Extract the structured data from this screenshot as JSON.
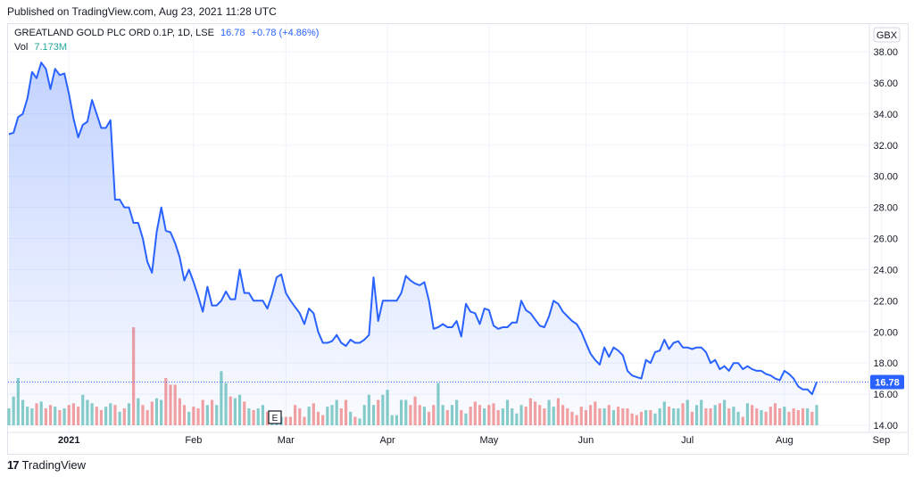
{
  "header": {
    "published": "Published on TradingView.com, Aug 23, 2021 11:28 UTC"
  },
  "legend": {
    "symbol": "GREATLAND GOLD PLC ORD 0.1P, 1D, LSE",
    "last": "16.78",
    "change": "+0.78 (+4.86%)",
    "vol_label": "Vol",
    "vol_value": "7.173M"
  },
  "currency": "GBX",
  "last_price_label": "16.78",
  "event_marker": "E",
  "footer": {
    "brand": "TradingView",
    "logo_glyph": "17"
  },
  "colors": {
    "line": "#2962ff",
    "up_volume": "#26a69a",
    "down_volume": "#ef5350",
    "price_tag": "#2962ff"
  },
  "chart_data": {
    "type": "area",
    "title": "GREATLAND GOLD PLC ORD 0.1P, 1D, LSE",
    "xlabel": "",
    "ylabel": "",
    "ylim": [
      14,
      39
    ],
    "y_ticks": [
      14.0,
      16.0,
      18.0,
      20.0,
      22.0,
      24.0,
      26.0,
      28.0,
      30.0,
      32.0,
      34.0,
      36.0,
      38.0
    ],
    "x_ticks": [
      "2021",
      "Feb",
      "Mar",
      "Apr",
      "May",
      "Jun",
      "Jul",
      "Aug",
      "Sep"
    ],
    "grid": true,
    "series": [
      {
        "values": [
          32.7,
          32.8,
          33.8,
          34.0,
          35.0,
          36.7,
          36.3,
          37.3,
          36.9,
          35.6,
          36.9,
          36.5,
          36.6,
          35.3,
          33.7,
          32.5,
          33.3,
          33.5,
          34.9,
          34.0,
          33.1,
          33.1,
          33.6,
          28.5,
          28.5,
          28.0,
          28.0,
          27.0,
          27.0,
          26.0,
          24.5,
          23.8,
          26.4,
          28.0,
          26.5,
          26.4,
          25.7,
          24.8,
          23.3,
          24.0,
          23.2,
          22.3,
          21.3,
          22.9,
          21.7,
          21.7,
          22.0,
          22.6,
          22.1,
          22.1,
          24.0,
          22.5,
          22.5,
          22.0,
          22.0,
          22.0,
          21.5,
          22.4,
          23.5,
          23.7,
          22.5,
          22.0,
          21.6,
          21.2,
          20.5,
          21.5,
          21.2,
          20.0,
          19.3,
          19.3,
          19.4,
          19.8,
          19.3,
          19.1,
          19.5,
          19.3,
          19.3,
          19.5,
          19.8,
          23.5,
          20.7,
          22.0,
          22.0,
          22.0,
          22.0,
          22.5,
          23.6,
          23.3,
          23.1,
          23.0,
          23.2,
          22.0,
          20.2,
          20.3,
          20.5,
          20.3,
          20.3,
          20.7,
          19.7,
          21.8,
          21.3,
          21.2,
          20.5,
          21.5,
          21.4,
          20.4,
          20.2,
          20.3,
          20.3,
          20.6,
          20.6,
          22.0,
          21.4,
          21.2,
          20.8,
          20.4,
          20.3,
          21.0,
          22.0,
          21.8,
          21.3,
          21.0,
          20.7,
          20.5,
          20.0,
          19.3,
          18.6,
          18.2,
          17.9,
          19.0,
          18.4,
          19.0,
          18.8,
          18.5,
          17.5,
          17.2,
          17.1,
          17.0,
          18.2,
          18.0,
          18.7,
          18.8,
          19.5,
          18.9,
          19.3,
          19.4,
          19.0,
          19.0,
          18.9,
          19.0,
          19.0,
          18.7,
          18.0,
          18.2,
          17.6,
          17.8,
          17.5,
          18.0,
          18.0,
          17.6,
          17.8,
          17.6,
          17.5,
          17.5,
          17.3,
          17.2,
          17.0,
          16.9,
          17.5,
          17.3,
          17.0,
          16.5,
          16.3,
          16.3,
          16.0,
          16.78
        ]
      },
      {
        "name": "Vol",
        "values": [
          1.0,
          1.7,
          2.8,
          1.5,
          1.1,
          1.0,
          1.3,
          1.4,
          1.0,
          1.2,
          1.1,
          0.9,
          1.0,
          1.2,
          1.3,
          1.1,
          1.8,
          1.5,
          1.3,
          1.1,
          0.9,
          1.1,
          1.3,
          1.2,
          0.8,
          1.0,
          1.3,
          5.8,
          1.6,
          1.2,
          0.9,
          1.4,
          1.6,
          1.5,
          2.8,
          2.4,
          2.4,
          1.6,
          1.2,
          0.8,
          1.1,
          1.0,
          1.5,
          1.2,
          1.5,
          1.2,
          3.2,
          2.5,
          1.7,
          1.6,
          1.8,
          1.4,
          1.0,
          0.9,
          1.0,
          1.2,
          0.8,
          0.6,
          0.6,
          0.5,
          0.5,
          0.5,
          1.2,
          1.0,
          0.5,
          1.1,
          1.3,
          0.8,
          0.6,
          1.1,
          1.2,
          1.5,
          1.0,
          1.5,
          0.8,
          0.5,
          0.4,
          1.2,
          1.8,
          1.2,
          1.5,
          1.8,
          2.1,
          0.6,
          0.6,
          1.5,
          1.5,
          1.2,
          1.7,
          1.2,
          1.1,
          0.8,
          1.2,
          2.5,
          1.2,
          0.9,
          1.2,
          1.5,
          0.9,
          0.7,
          1.1,
          1.4,
          1.2,
          1.0,
          1.2,
          1.3,
          0.9,
          1.0,
          1.5,
          1.0,
          0.7,
          1.2,
          1.1,
          1.6,
          1.4,
          1.2,
          1.0,
          1.5,
          1.1,
          1.6,
          1.2,
          1.0,
          0.8,
          0.6,
          1.1,
          0.9,
          1.2,
          1.4,
          1.0,
          1.0,
          1.2,
          0.9,
          1.1,
          1.0,
          1.0,
          0.7,
          0.6,
          0.8,
          0.9,
          0.9,
          0.7,
          1.0,
          1.4,
          1.1,
          1.0,
          1.0,
          1.3,
          1.5,
          0.8,
          1.2,
          1.5,
          1.0,
          1.0,
          1.2,
          1.3,
          1.5,
          1.0,
          1.1,
          0.8,
          0.5,
          1.3,
          1.2,
          1.0,
          0.9,
          0.8,
          1.1,
          1.3,
          1.0,
          1.1,
          0.8,
          1.0,
          0.9,
          1.0,
          1.0,
          0.8,
          1.2,
          0.7,
          1.4,
          0.8,
          0.9,
          0.7,
          0.7
        ]
      }
    ],
    "annotations": [
      "16.78",
      "E"
    ]
  }
}
